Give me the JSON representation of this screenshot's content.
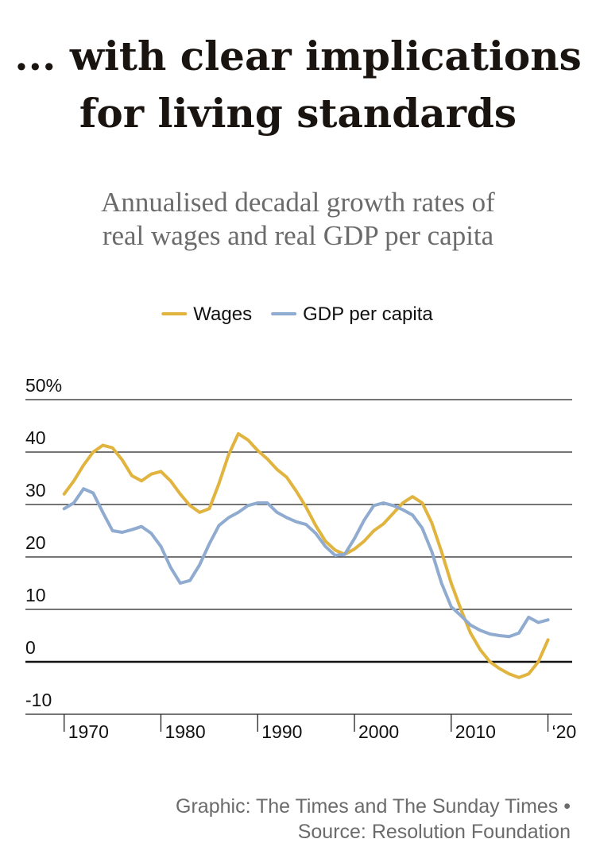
{
  "chart_data": {
    "type": "line",
    "title": [
      "... with clear implications",
      "for living standards"
    ],
    "subtitle": [
      "Annualised decadal growth rates of",
      "real wages and real GDP per capita"
    ],
    "x": [
      1970,
      1971,
      1972,
      1973,
      1974,
      1975,
      1976,
      1977,
      1978,
      1979,
      1980,
      1981,
      1982,
      1983,
      1984,
      1985,
      1986,
      1987,
      1988,
      1989,
      1990,
      1991,
      1992,
      1993,
      1994,
      1995,
      1996,
      1997,
      1998,
      1999,
      2000,
      2001,
      2002,
      2003,
      2004,
      2005,
      2006,
      2007,
      2008,
      2009,
      2010,
      2011,
      2012,
      2013,
      2014,
      2015,
      2016,
      2017,
      2018,
      2019,
      2020
    ],
    "series": [
      {
        "name": "Wages",
        "color": "#e0b43e",
        "values": [
          32,
          34.5,
          37.5,
          40,
          41.3,
          40.8,
          38.5,
          35.5,
          34.5,
          35.8,
          36.3,
          34.5,
          32,
          29.8,
          28.5,
          29.2,
          34,
          39.5,
          43.5,
          42.3,
          40.3,
          38.7,
          36.7,
          35.2,
          32.5,
          29.5,
          26,
          23,
          21.3,
          20.5,
          21.5,
          23,
          25,
          26.3,
          28.3,
          30.3,
          31.5,
          30.3,
          26.5,
          21,
          15,
          10,
          5.5,
          2.3,
          0,
          -1.3,
          -2.3,
          -3,
          -2.3,
          0,
          4.2
        ]
      },
      {
        "name": "GDP per capita",
        "color": "#8fabcf",
        "values": [
          29.2,
          30.3,
          33,
          32.2,
          28.5,
          25,
          24.7,
          25.2,
          25.8,
          24.5,
          22,
          18,
          15,
          15.5,
          18.5,
          22.5,
          26,
          27.5,
          28.5,
          29.8,
          30.3,
          30.3,
          28.5,
          27.5,
          26.7,
          26.2,
          24.5,
          22,
          20.3,
          20.5,
          23.5,
          27,
          29.8,
          30.3,
          29.8,
          29,
          28,
          25.5,
          21,
          15,
          10.5,
          8.8,
          7,
          6,
          5.3,
          5,
          4.8,
          5.5,
          8.5,
          7.5,
          8
        ]
      }
    ],
    "xlim": [
      1966,
      2022.5
    ],
    "xticks": [
      1970,
      1980,
      1990,
      2000,
      2010,
      {
        "value": 2020,
        "label": "‘20"
      }
    ],
    "ylim": [
      -10,
      50
    ],
    "yticks": [
      -10,
      0,
      10,
      20,
      30,
      40,
      {
        "value": 50,
        "label": "50%"
      }
    ],
    "grid": true,
    "legend": "top",
    "footer": [
      "Graphic: The Times and The Sunday Times •",
      "Source: Resolution Foundation"
    ]
  }
}
